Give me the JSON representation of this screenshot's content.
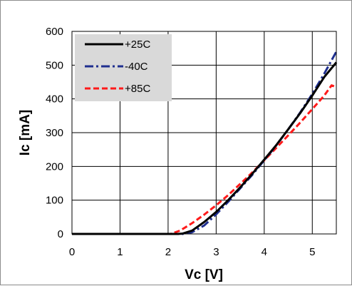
{
  "chart_data": {
    "type": "line",
    "title": "",
    "xlabel": "Vc [V]",
    "ylabel": "Ic [mA]",
    "xlim": [
      0,
      5.5
    ],
    "ylim": [
      0,
      600
    ],
    "xticks": [
      "0",
      "1",
      "2",
      "3",
      "4",
      "5"
    ],
    "yticks": [
      "0",
      "100",
      "200",
      "300",
      "400",
      "500",
      "600"
    ],
    "grid": true,
    "legend_position": "top-left",
    "series": [
      {
        "name": "+25C",
        "color": "#000000",
        "dash": "solid",
        "x": [
          0,
          1,
          2,
          2.2,
          2.3,
          2.5,
          2.75,
          3,
          3.25,
          3.5,
          3.75,
          4,
          4.25,
          4.5,
          4.75,
          5,
          5.25,
          5.5
        ],
        "y": [
          0,
          0,
          0,
          0,
          1,
          10,
          35,
          65,
          100,
          138,
          178,
          220,
          263,
          310,
          358,
          410,
          465,
          508
        ]
      },
      {
        "name": "-40C",
        "color": "#1f2f8f",
        "dash": "dashdot",
        "x": [
          0,
          1,
          2,
          2.3,
          2.5,
          2.75,
          3,
          3.25,
          3.5,
          3.75,
          4,
          4.25,
          4.5,
          4.75,
          5,
          5.25,
          5.5
        ],
        "y": [
          0,
          0,
          0,
          0,
          5,
          25,
          58,
          95,
          135,
          175,
          218,
          262,
          310,
          360,
          415,
          475,
          540
        ]
      },
      {
        "name": "+85C",
        "color": "#ff1a1a",
        "dash": "dashed",
        "x": [
          0,
          1,
          2,
          2.05,
          2.25,
          2.5,
          2.75,
          3,
          3.25,
          3.5,
          3.75,
          4,
          4.25,
          4.5,
          4.75,
          5,
          5.25,
          5.4,
          5.5
        ],
        "y": [
          0,
          0,
          0,
          0,
          10,
          32,
          57,
          85,
          115,
          148,
          182,
          218,
          255,
          292,
          330,
          370,
          410,
          440,
          435
        ]
      }
    ]
  }
}
